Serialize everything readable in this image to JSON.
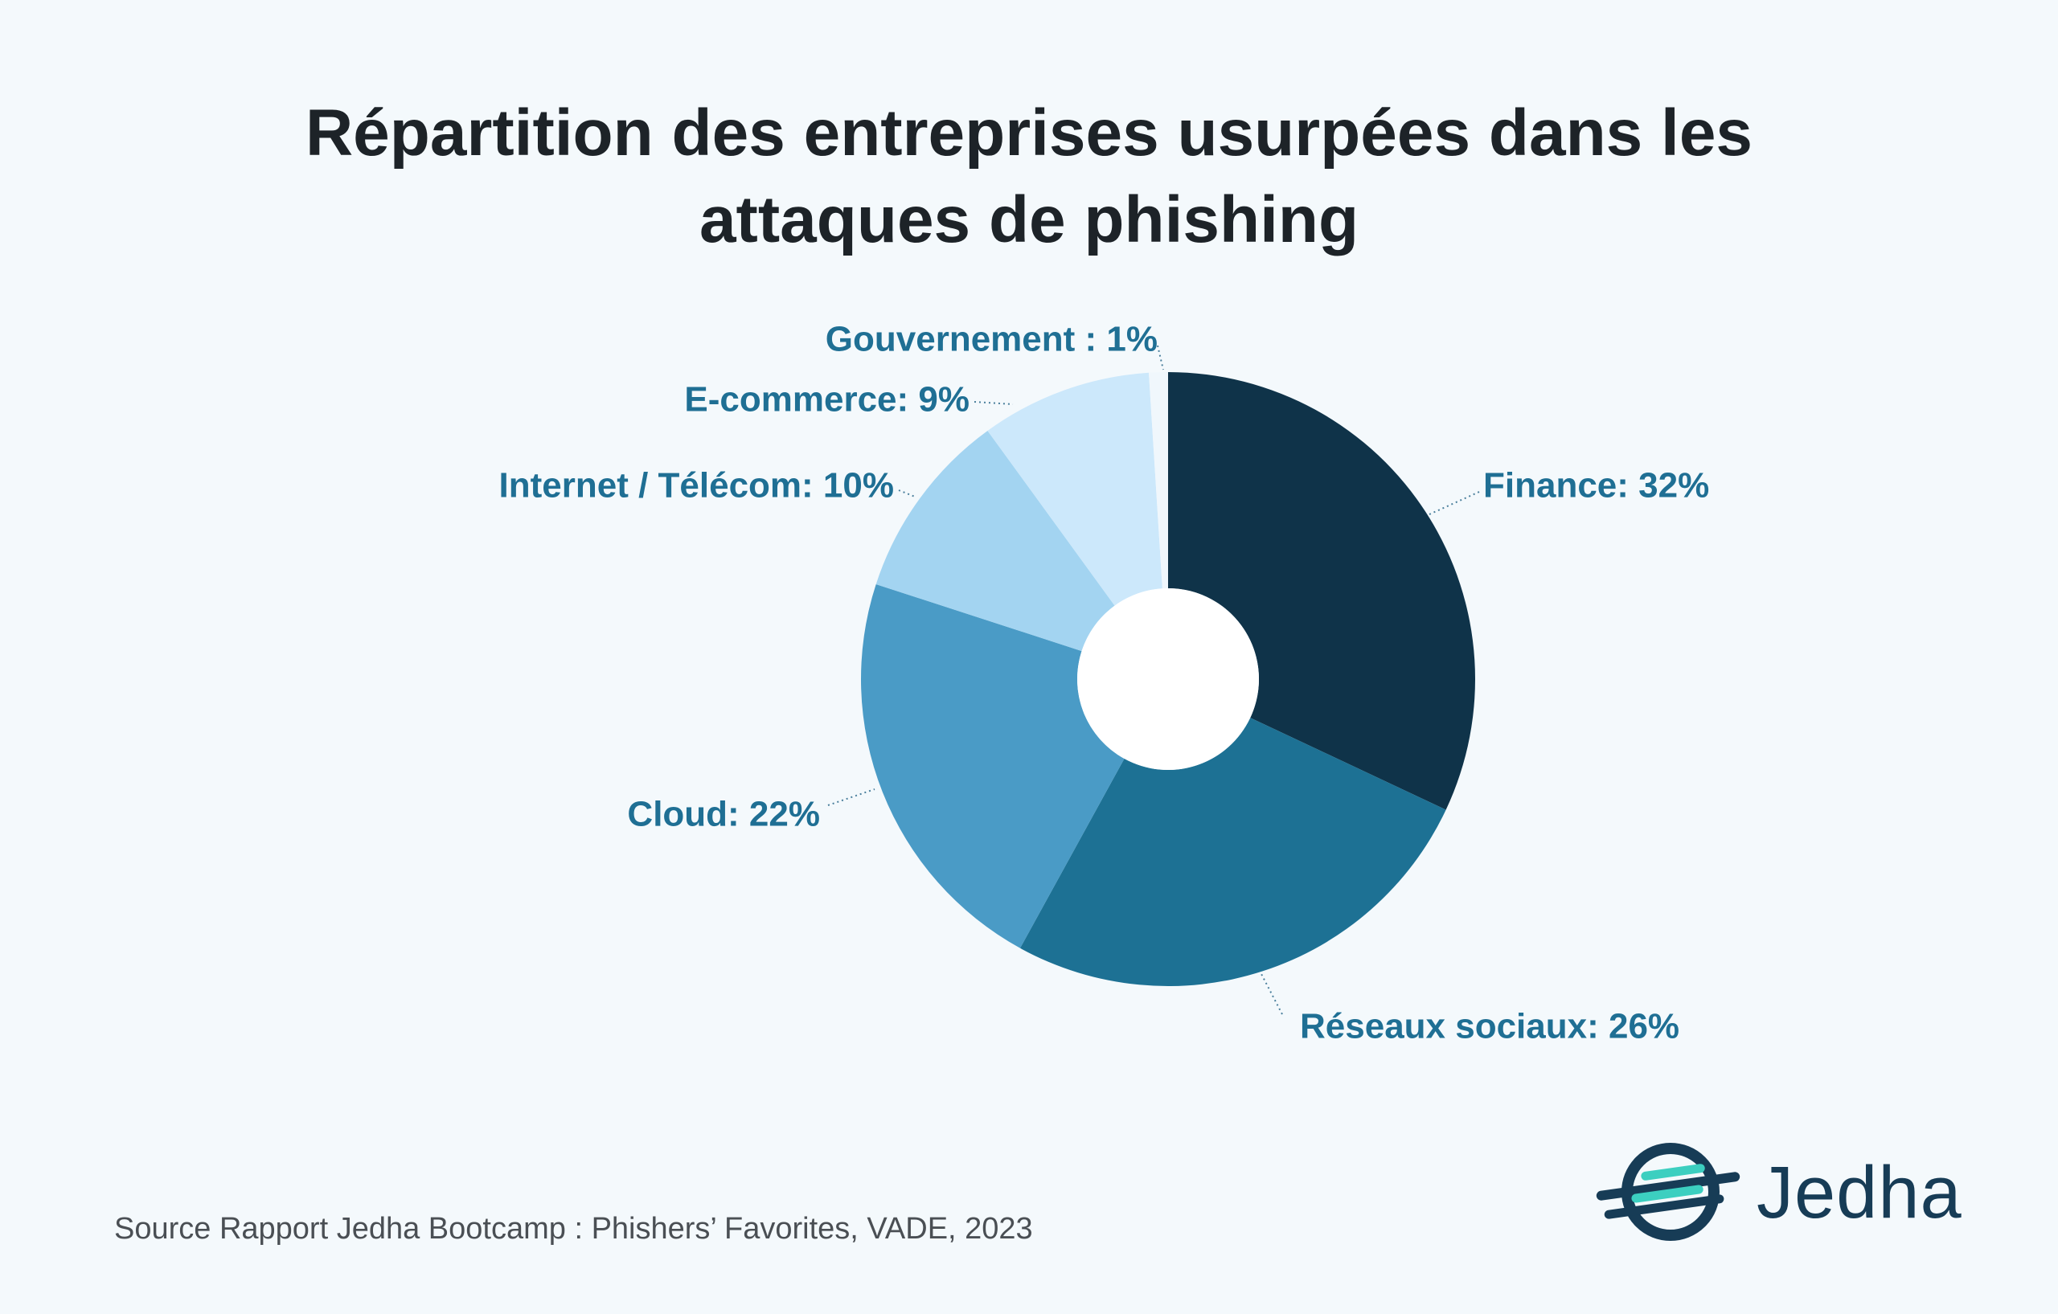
{
  "title_line1": "Répartition des entreprises usurpées dans les",
  "title_line2": "attaques de phishing",
  "source": "Source Rapport Jedha Bootcamp : Phishers’ Favorites, VADE, 2023",
  "logo": {
    "name": "Jedha",
    "icon": "jedha-logo-icon",
    "color": "#173c56",
    "accent": "#3ccfc0"
  },
  "chart_data": {
    "type": "pie",
    "donut": true,
    "title": "Répartition des entreprises usurpées dans les attaques de phishing",
    "slices": [
      {
        "label": "Finance: 32%",
        "category": "Finance",
        "value": 32,
        "color": "#0f3349"
      },
      {
        "label": "Réseaux sociaux: 26%",
        "category": "Réseaux sociaux",
        "value": 26,
        "color": "#1d7194"
      },
      {
        "label": "Cloud: 22%",
        "category": "Cloud",
        "value": 22,
        "color": "#4a9bc6"
      },
      {
        "label": "Internet / Télécom: 10%",
        "category": "Internet / Télécom",
        "value": 10,
        "color": "#a3d4f1"
      },
      {
        "label": "E-commerce: 9%",
        "category": "E-commerce",
        "value": 9,
        "color": "#cce8fb"
      },
      {
        "label": "Gouvernement : 1%",
        "category": "Gouvernement",
        "value": 1,
        "color": "#f0f7fc"
      }
    ]
  }
}
